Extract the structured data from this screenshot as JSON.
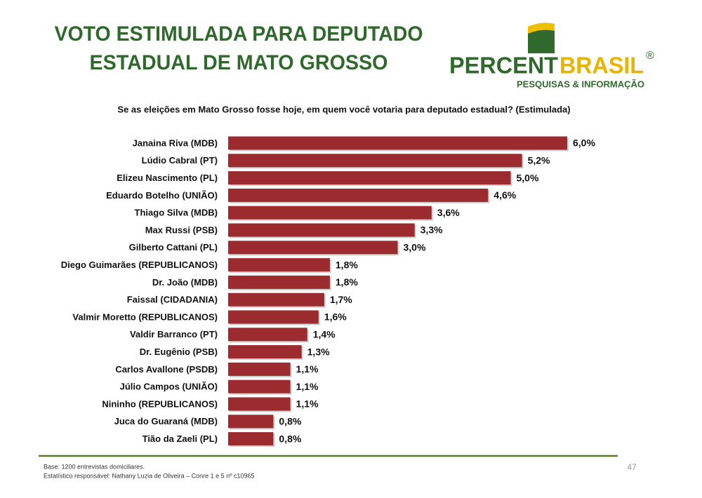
{
  "header": {
    "title_lines": [
      "VOTO ESTIMULADA PARA DEPUTADO",
      "ESTADUAL DE MATO GROSSO"
    ],
    "logo": {
      "part1": "PERCENT",
      "part2": "BRASIL",
      "mark": "®",
      "tagline": "PESQUISAS & INFORMAÇÃO"
    }
  },
  "chart_data": {
    "type": "hbar",
    "title": "Se as eleições em Mato Grosso fosse hoje, em quem você votaria para deputado estadual? (Estimulada)",
    "categories": [
      "Janaina Riva (MDB)",
      "Lúdio Cabral (PT)",
      "Elizeu Nascimento (PL)",
      "Eduardo Botelho (UNIÃO)",
      "Thiago Silva (MDB)",
      "Max Russi (PSB)",
      "Gilberto Cattani (PL)",
      "Diego Guimarães (REPUBLICANOS)",
      "Dr. João (MDB)",
      "Faissal (CIDADANIA)",
      "Valmir Moretto (REPUBLICANOS)",
      "Valdir Barranco (PT)",
      "Dr. Eugênio (PSB)",
      "Carlos Avallone (PSDB)",
      "Júlio Campos (UNIÃO)",
      "Nininho (REPUBLICANOS)",
      "Juca do Guaraná (MDB)",
      "Tião da Zaeli (PL)"
    ],
    "values": [
      6.0,
      5.2,
      5.0,
      4.6,
      3.6,
      3.3,
      3.0,
      1.8,
      1.8,
      1.7,
      1.6,
      1.4,
      1.3,
      1.1,
      1.1,
      1.1,
      0.8,
      0.8
    ],
    "value_labels": [
      "6,0%",
      "5,2%",
      "5,0%",
      "4,6%",
      "3,6%",
      "3,3%",
      "3,0%",
      "1,8%",
      "1,8%",
      "1,7%",
      "1,6%",
      "1,4%",
      "1,3%",
      "1,1%",
      "1,1%",
      "1,1%",
      "0,8%",
      "0,8%"
    ],
    "color": "#9b2b2f"
  },
  "footer": {
    "notes": [
      "Base: 1200 entrevistas domiciliares.",
      "Estatístico responsável: Nathany Luzia de Oliveira – Conre 1 e 5 nº c10965"
    ],
    "page_number": "47"
  }
}
